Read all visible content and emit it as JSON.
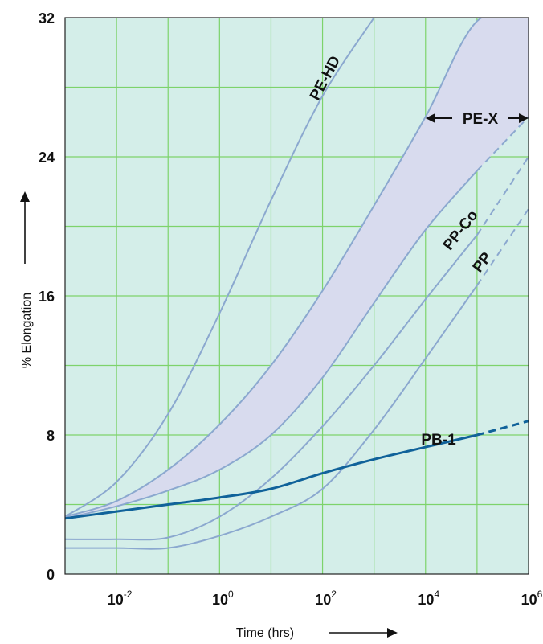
{
  "chart_data": {
    "type": "line",
    "title": "",
    "xlabel": "Time (hrs)",
    "ylabel": "% Elongation",
    "x_scale": "log",
    "xlim": [
      0.001,
      1000000
    ],
    "ylim": [
      0,
      32
    ],
    "x_ticks": [
      {
        "value": 0.01,
        "base": "10",
        "exp": "-2"
      },
      {
        "value": 1,
        "base": "10",
        "exp": "0"
      },
      {
        "value": 100,
        "base": "10",
        "exp": "2"
      },
      {
        "value": 10000,
        "base": "10",
        "exp": "4"
      },
      {
        "value": 1000000,
        "base": "10",
        "exp": "6"
      }
    ],
    "y_ticks": [
      0,
      8,
      16,
      24,
      32
    ],
    "grid": true,
    "colors": {
      "background": "#d4eee9",
      "grid": "#7dd36b",
      "curves": "#8ba8cf",
      "band": "#d8dbee",
      "pb1": "#10629a"
    },
    "band_label": "PE-X",
    "series": [
      {
        "name": "PE-HD",
        "x": [
          0.001,
          0.01,
          0.1,
          1,
          10,
          100,
          1000
        ],
        "y": [
          3.3,
          5.3,
          9.2,
          15.0,
          21.5,
          27.5,
          32.0
        ]
      },
      {
        "name": "PE-X (upper)",
        "x": [
          0.001,
          0.01,
          0.1,
          1,
          10,
          100,
          1000,
          10000,
          100000,
          1000000
        ],
        "y": [
          3.3,
          4.2,
          6.0,
          8.6,
          12.0,
          16.3,
          21.2,
          26.3,
          31.8,
          32.0
        ]
      },
      {
        "name": "PE-X (lower)",
        "x": [
          0.001,
          0.01,
          0.1,
          1,
          10,
          100,
          1000,
          10000,
          100000,
          1000000
        ],
        "y": [
          3.2,
          3.9,
          4.8,
          6.0,
          8.0,
          11.3,
          15.6,
          19.8,
          23.2,
          26.3
        ],
        "dashed_from": 100000
      },
      {
        "name": "PP-Co",
        "x": [
          0.001,
          0.01,
          0.1,
          1,
          10,
          100,
          1000,
          10000,
          100000,
          1000000
        ],
        "y": [
          2.0,
          2.0,
          2.1,
          3.3,
          5.5,
          8.5,
          12.0,
          15.8,
          19.5,
          24.0
        ],
        "dashed_from": 100000
      },
      {
        "name": "PP",
        "x": [
          0.001,
          0.01,
          0.1,
          1,
          10,
          100,
          1000,
          10000,
          100000,
          1000000
        ],
        "y": [
          1.5,
          1.5,
          1.5,
          2.2,
          3.3,
          4.9,
          8.3,
          12.4,
          16.6,
          21.0
        ],
        "dashed_from": 100000
      },
      {
        "name": "PB-1",
        "x": [
          0.001,
          0.01,
          0.1,
          1,
          10,
          100,
          1000,
          10000,
          100000,
          1000000
        ],
        "y": [
          3.2,
          3.6,
          4.0,
          4.4,
          4.9,
          5.8,
          6.6,
          7.3,
          8.0,
          8.8
        ],
        "dashed_from": 100000
      }
    ]
  }
}
